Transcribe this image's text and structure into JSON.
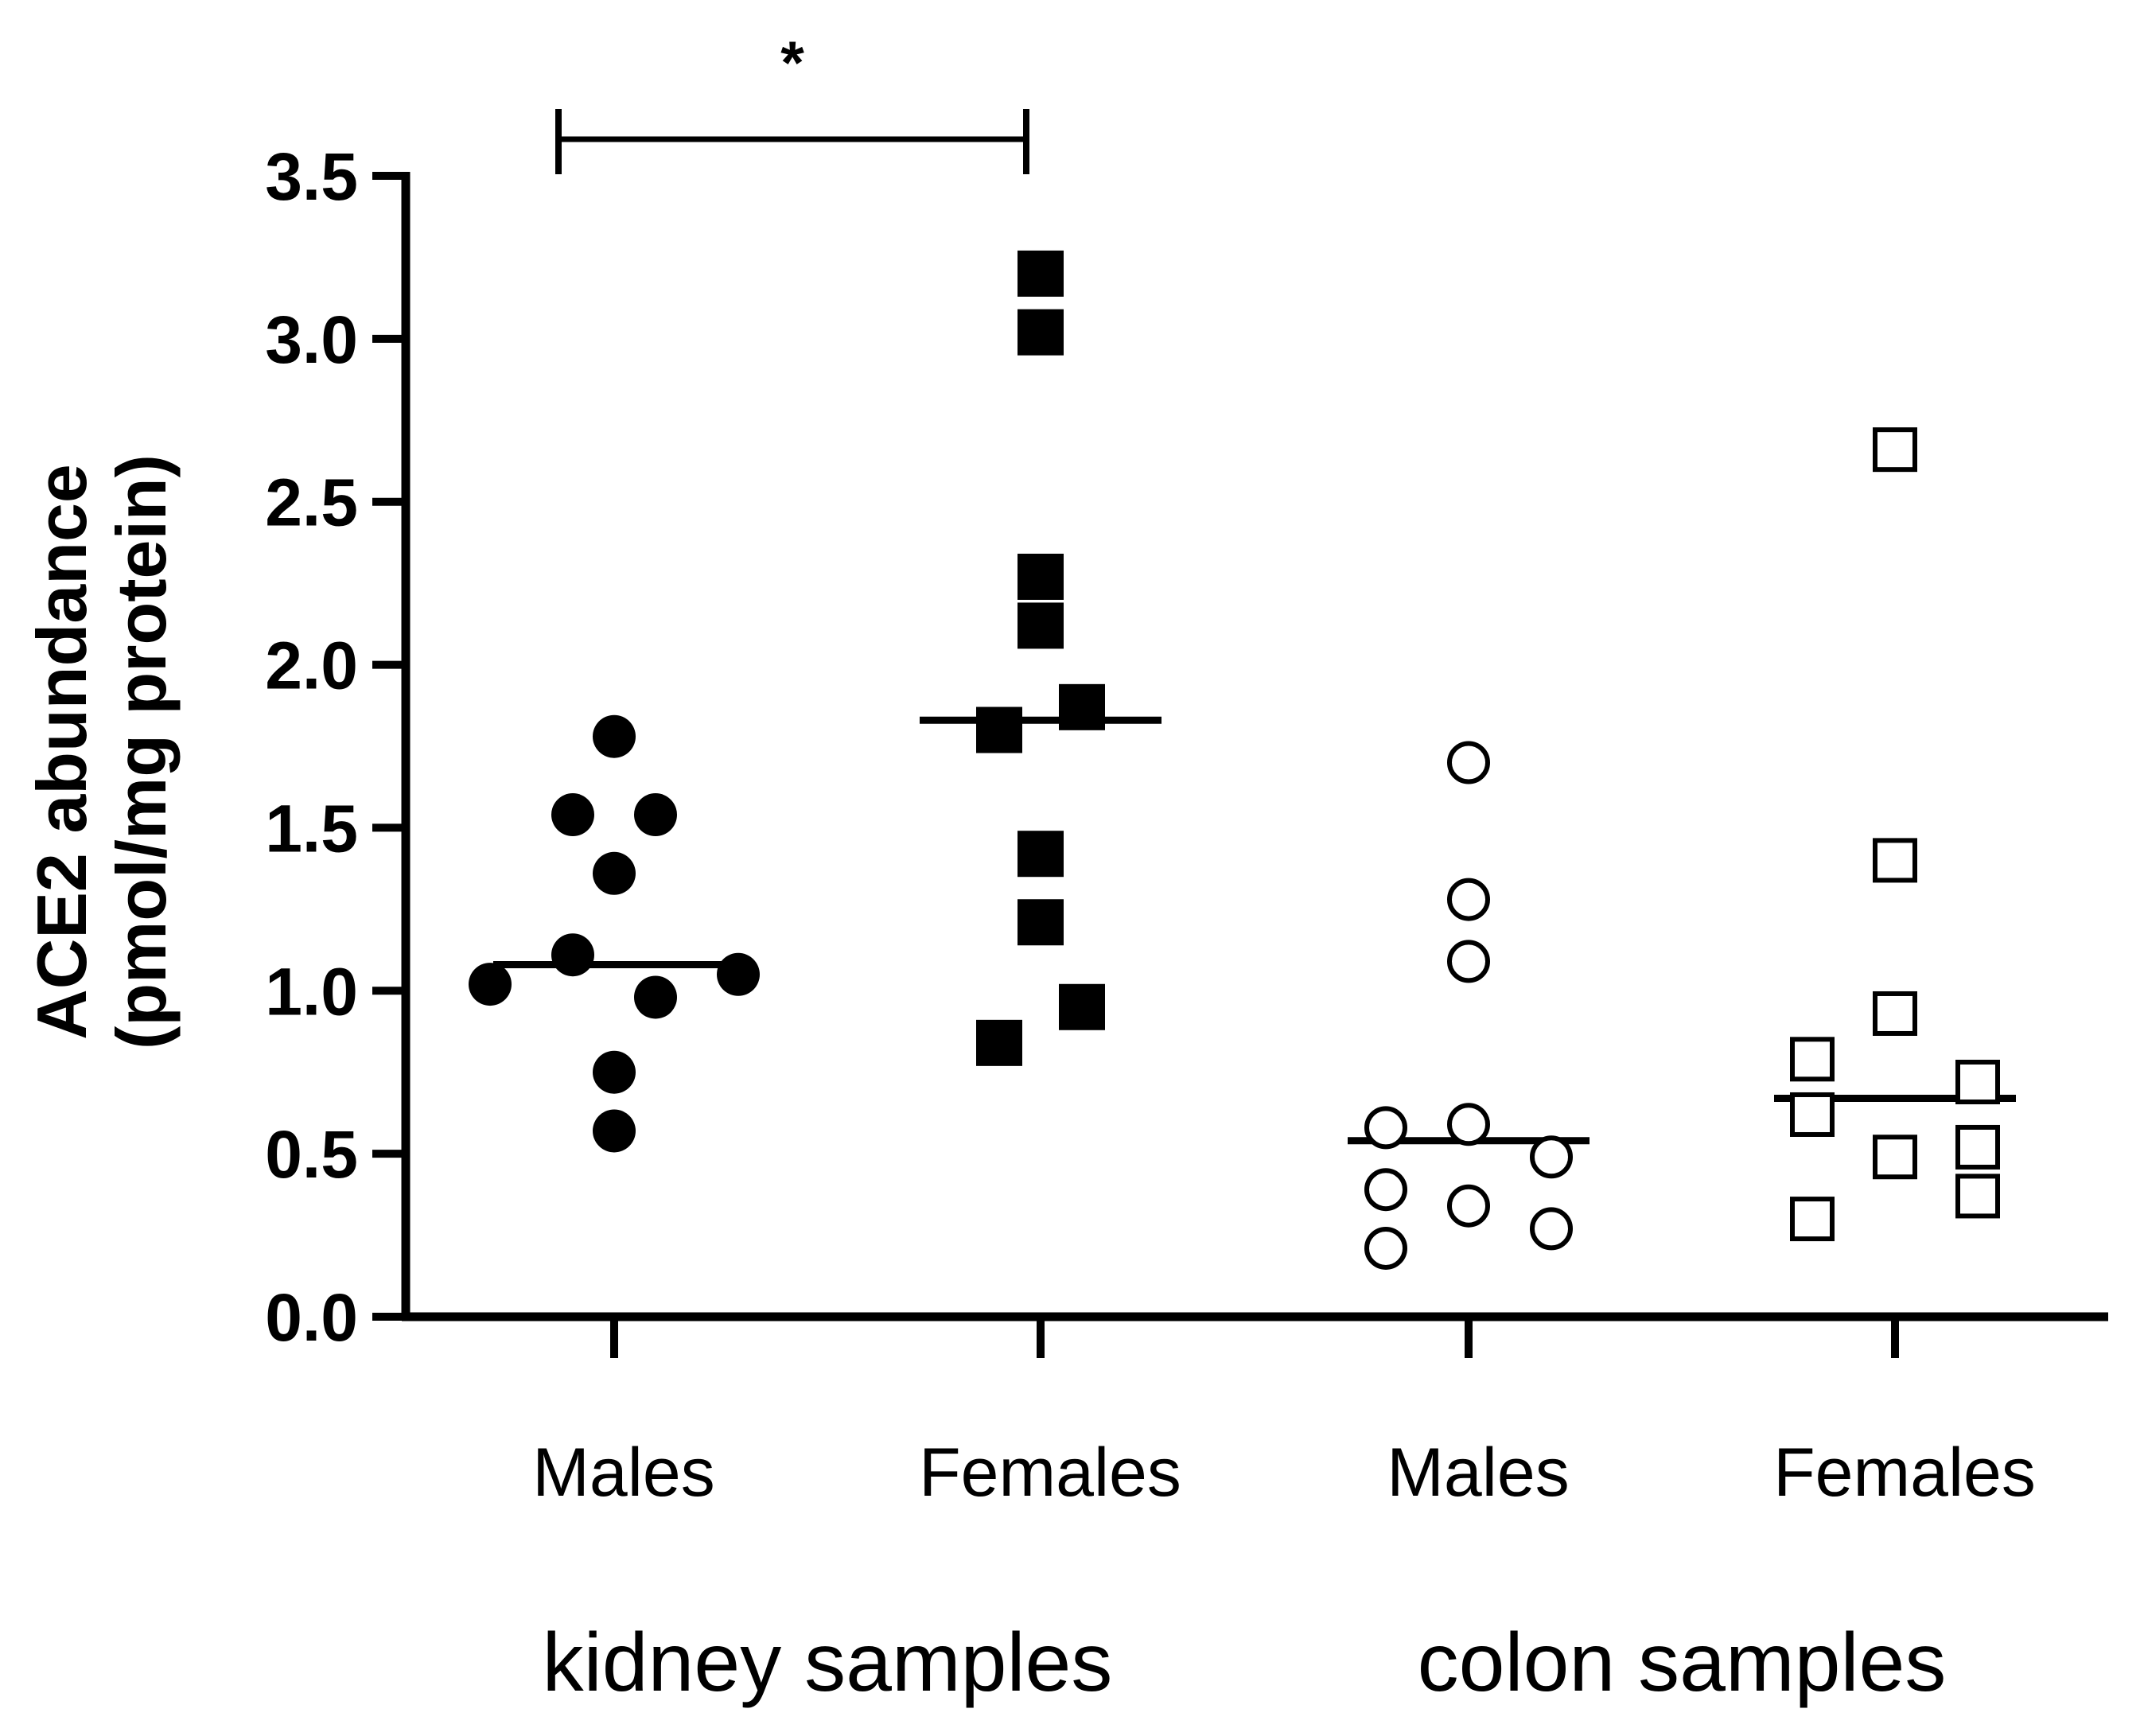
{
  "chart_data": {
    "type": "scatter",
    "title": "",
    "ylabel_line1": "ACE2 abundance",
    "ylabel_line2": "(pmol/mg protein)",
    "ylim": [
      0,
      3.5
    ],
    "yticks": [
      "0.0",
      "0.5",
      "1.0",
      "1.5",
      "2.0",
      "2.5",
      "3.0",
      "3.5"
    ],
    "categories": [
      "Males",
      "Females",
      "Males",
      "Females"
    ],
    "groups": [
      {
        "label": "kidney samples",
        "categories": [
          0,
          1
        ]
      },
      {
        "label": "colon samples",
        "categories": [
          2,
          3
        ]
      }
    ],
    "series": [
      {
        "name": "kidney Males",
        "marker": "circle",
        "filled": true,
        "median": 1.08,
        "points": [
          {
            "v": 1.78,
            "o": 0
          },
          {
            "v": 1.54,
            "o": -1
          },
          {
            "v": 1.54,
            "o": 1
          },
          {
            "v": 1.36,
            "o": 0
          },
          {
            "v": 1.11,
            "o": -1
          },
          {
            "v": 1.02,
            "o": -3
          },
          {
            "v": 0.98,
            "o": 1
          },
          {
            "v": 1.05,
            "o": 3
          },
          {
            "v": 0.75,
            "o": 0
          },
          {
            "v": 0.57,
            "o": 0
          }
        ]
      },
      {
        "name": "kidney Females",
        "marker": "square",
        "filled": true,
        "median": 1.83,
        "points": [
          {
            "v": 3.2,
            "o": 0
          },
          {
            "v": 3.02,
            "o": 0
          },
          {
            "v": 2.27,
            "o": 0
          },
          {
            "v": 2.12,
            "o": 0
          },
          {
            "v": 1.87,
            "o": 1
          },
          {
            "v": 1.8,
            "o": -1
          },
          {
            "v": 1.42,
            "o": 0
          },
          {
            "v": 1.21,
            "o": 0
          },
          {
            "v": 0.95,
            "o": 1
          },
          {
            "v": 0.84,
            "o": -1
          }
        ]
      },
      {
        "name": "colon Males",
        "marker": "circle",
        "filled": false,
        "median": 0.54,
        "points": [
          {
            "v": 1.7,
            "o": 0
          },
          {
            "v": 1.28,
            "o": 0
          },
          {
            "v": 1.09,
            "o": 0
          },
          {
            "v": 0.59,
            "o": 0
          },
          {
            "v": 0.58,
            "o": -2
          },
          {
            "v": 0.49,
            "o": 2
          },
          {
            "v": 0.39,
            "o": -2
          },
          {
            "v": 0.34,
            "o": 0
          },
          {
            "v": 0.27,
            "o": 2
          },
          {
            "v": 0.21,
            "o": -2
          }
        ]
      },
      {
        "name": "colon Females",
        "marker": "square",
        "filled": false,
        "median": 0.67,
        "points": [
          {
            "v": 2.66,
            "o": 0
          },
          {
            "v": 1.4,
            "o": 0
          },
          {
            "v": 0.93,
            "o": 0
          },
          {
            "v": 0.79,
            "o": -2
          },
          {
            "v": 0.72,
            "o": 2
          },
          {
            "v": 0.62,
            "o": -2
          },
          {
            "v": 0.52,
            "o": 2
          },
          {
            "v": 0.49,
            "o": 0
          },
          {
            "v": 0.37,
            "o": 2
          },
          {
            "v": 0.3,
            "o": -2
          }
        ]
      }
    ],
    "annotations": [
      {
        "type": "significance-bracket",
        "from": 0,
        "to": 1,
        "text": "*"
      }
    ]
  }
}
